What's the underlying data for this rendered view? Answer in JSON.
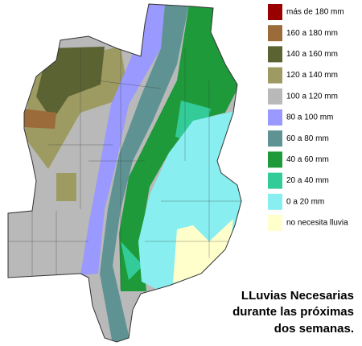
{
  "legend": {
    "items": [
      {
        "label": "más de 180 mm",
        "color": "#990000"
      },
      {
        "label": "160 a 180 mm",
        "color": "#9c6b3a"
      },
      {
        "label": "140 a 160 mm",
        "color": "#5c6333"
      },
      {
        "label": "120 a 140 mm",
        "color": "#9d9b62"
      },
      {
        "label": "100 a 120 mm",
        "color": "#b9b9b9"
      },
      {
        "label": "80 a 100 mm",
        "color": "#9999ff"
      },
      {
        "label": "60 a 80 mm",
        "color": "#5f9393"
      },
      {
        "label": "40 a 60 mm",
        "color": "#1f9a3a"
      },
      {
        "label": "20 a 40 mm",
        "color": "#33cc99"
      },
      {
        "label": "0 a 20 mm",
        "color": "#88eef0"
      },
      {
        "label": "no necesita lluvia",
        "color": "#ffffcc"
      }
    ]
  },
  "caption": {
    "lines": [
      "LLuvias Necesarias",
      "durante las próximas",
      "dos semanas."
    ]
  }
}
